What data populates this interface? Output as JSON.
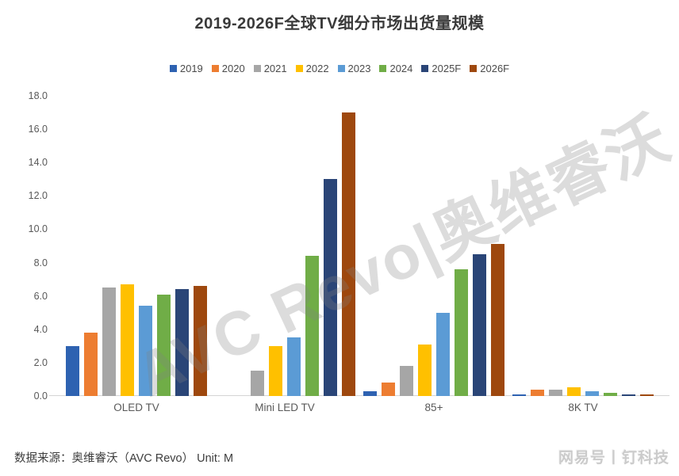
{
  "title": "2019-2026F全球TV细分市场出货量规模",
  "watermark": "AVC Revo|奥维睿沃",
  "source_note": "数据来源：奥维睿沃（AVC Revo）  Unit: M",
  "brand": "网易号丨钉科技",
  "chart_data": {
    "type": "bar",
    "title": "2019-2026F全球TV细分市场出货量规模",
    "categories": [
      "OLED TV",
      "Mini LED TV",
      "85+",
      "8K TV"
    ],
    "series": [
      {
        "name": "2019",
        "color": "#2E62B1",
        "values": [
          3.0,
          0,
          0.3,
          0.1
        ]
      },
      {
        "name": "2020",
        "color": "#ED7D31",
        "values": [
          3.8,
          0,
          0.8,
          0.4
        ]
      },
      {
        "name": "2021",
        "color": "#A6A6A6",
        "values": [
          6.5,
          1.5,
          1.8,
          0.4
        ]
      },
      {
        "name": "2022",
        "color": "#FFC000",
        "values": [
          6.7,
          3.0,
          3.1,
          0.5
        ]
      },
      {
        "name": "2023",
        "color": "#5B9BD5",
        "values": [
          5.4,
          3.5,
          5.0,
          0.3
        ]
      },
      {
        "name": "2024",
        "color": "#70AD47",
        "values": [
          6.1,
          8.4,
          7.6,
          0.2
        ]
      },
      {
        "name": "2025F",
        "color": "#2A4577",
        "values": [
          6.4,
          13.0,
          8.5,
          0.1
        ]
      },
      {
        "name": "2026F",
        "color": "#9E480E",
        "values": [
          6.6,
          17.0,
          9.1,
          0.1
        ]
      }
    ],
    "xlabel": "",
    "ylabel": "",
    "ylim": [
      0,
      18
    ],
    "ytick_step": 2,
    "yticks": [
      "18.0",
      "16.0",
      "14.0",
      "12.0",
      "10.0",
      "8.0",
      "6.0",
      "4.0",
      "2.0",
      "0.0"
    ],
    "grid": false,
    "legend_position": "top",
    "unit": "M"
  }
}
